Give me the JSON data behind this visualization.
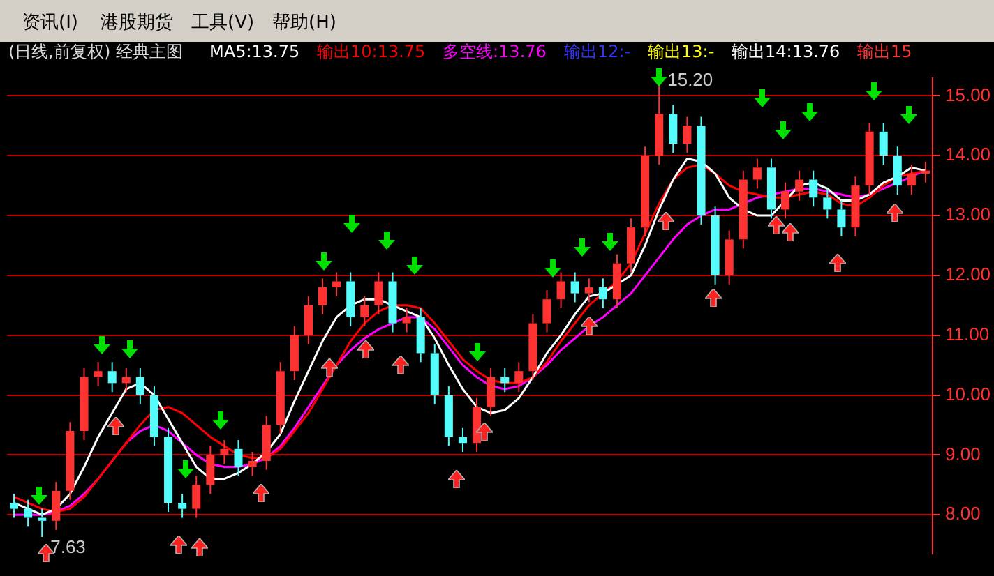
{
  "chart_data": {
    "type": "candlestick",
    "title": "(日线,前复权) 经典主图",
    "categories": [
      null,
      null,
      null,
      null,
      null,
      null,
      null,
      null,
      null,
      null,
      null,
      null,
      null,
      null,
      null,
      null,
      null,
      null,
      null,
      null,
      null,
      null,
      null,
      null,
      null,
      null,
      null,
      null,
      null,
      null,
      null,
      null,
      null,
      null,
      null,
      null,
      null,
      null,
      null,
      null,
      null,
      null,
      null,
      null,
      null,
      null,
      null,
      null,
      null,
      null,
      null,
      null,
      null,
      null,
      null,
      null,
      null,
      null,
      null,
      null,
      null,
      null,
      null,
      null,
      null,
      null
    ],
    "ohlc": [
      [
        8.2,
        8.35,
        7.95,
        8.1
      ],
      [
        8.1,
        8.25,
        7.8,
        7.95
      ],
      [
        7.95,
        8.1,
        7.63,
        7.9
      ],
      [
        7.9,
        8.55,
        7.75,
        8.4
      ],
      [
        8.4,
        9.55,
        8.25,
        9.4
      ],
      [
        9.4,
        10.45,
        9.25,
        10.3
      ],
      [
        10.3,
        10.55,
        10.15,
        10.4
      ],
      [
        10.4,
        10.55,
        10.05,
        10.2
      ],
      [
        10.2,
        10.45,
        10.05,
        10.3
      ],
      [
        10.3,
        10.45,
        9.85,
        10.0
      ],
      [
        10.0,
        10.15,
        9.15,
        9.3
      ],
      [
        9.3,
        9.45,
        8.05,
        8.2
      ],
      [
        8.2,
        8.35,
        7.95,
        8.1
      ],
      [
        8.1,
        8.65,
        7.95,
        8.5
      ],
      [
        8.5,
        9.15,
        8.35,
        9.0
      ],
      [
        9.0,
        9.25,
        8.85,
        9.1
      ],
      [
        9.1,
        9.25,
        8.65,
        8.8
      ],
      [
        8.8,
        9.05,
        8.65,
        8.9
      ],
      [
        8.9,
        9.65,
        8.75,
        9.5
      ],
      [
        9.5,
        10.55,
        9.35,
        10.4
      ],
      [
        10.4,
        11.15,
        10.25,
        11.0
      ],
      [
        11.0,
        11.65,
        10.85,
        11.5
      ],
      [
        11.5,
        11.95,
        11.35,
        11.8
      ],
      [
        11.8,
        12.05,
        11.65,
        11.9
      ],
      [
        11.9,
        12.05,
        11.15,
        11.3
      ],
      [
        11.3,
        11.65,
        11.15,
        11.5
      ],
      [
        11.5,
        12.05,
        11.35,
        11.9
      ],
      [
        11.9,
        12.05,
        11.05,
        11.2
      ],
      [
        11.2,
        11.45,
        11.05,
        11.3
      ],
      [
        11.3,
        11.45,
        10.55,
        10.7
      ],
      [
        10.7,
        10.85,
        9.85,
        10.0
      ],
      [
        10.0,
        10.15,
        9.15,
        9.3
      ],
      [
        9.3,
        9.45,
        9.05,
        9.2
      ],
      [
        9.2,
        9.95,
        9.05,
        9.8
      ],
      [
        9.8,
        10.45,
        9.65,
        10.3
      ],
      [
        10.3,
        10.45,
        10.05,
        10.2
      ],
      [
        10.2,
        10.55,
        10.05,
        10.4
      ],
      [
        10.4,
        11.35,
        10.25,
        11.2
      ],
      [
        11.2,
        11.75,
        11.05,
        11.6
      ],
      [
        11.6,
        12.05,
        11.45,
        11.9
      ],
      [
        11.9,
        12.05,
        11.55,
        11.7
      ],
      [
        11.7,
        11.95,
        11.55,
        11.8
      ],
      [
        11.8,
        11.95,
        11.45,
        11.6
      ],
      [
        11.6,
        12.35,
        11.45,
        12.2
      ],
      [
        12.2,
        12.95,
        12.05,
        12.8
      ],
      [
        12.8,
        14.15,
        12.65,
        14.0
      ],
      [
        14.0,
        15.2,
        13.85,
        14.7
      ],
      [
        14.7,
        14.85,
        14.05,
        14.2
      ],
      [
        14.2,
        14.65,
        14.05,
        14.5
      ],
      [
        14.5,
        14.65,
        12.85,
        13.0
      ],
      [
        13.0,
        13.15,
        11.85,
        12.0
      ],
      [
        12.0,
        12.75,
        11.85,
        12.6
      ],
      [
        12.6,
        13.75,
        12.45,
        13.6
      ],
      [
        13.6,
        13.95,
        13.45,
        13.8
      ],
      [
        13.8,
        13.95,
        12.95,
        13.1
      ],
      [
        13.1,
        13.55,
        12.95,
        13.4
      ],
      [
        13.4,
        13.75,
        13.25,
        13.6
      ],
      [
        13.6,
        13.75,
        13.15,
        13.3
      ],
      [
        13.3,
        13.45,
        12.95,
        13.1
      ],
      [
        13.1,
        13.25,
        12.65,
        12.8
      ],
      [
        12.8,
        13.65,
        12.65,
        13.5
      ],
      [
        13.5,
        14.55,
        13.35,
        14.4
      ],
      [
        14.4,
        14.55,
        13.85,
        14.0
      ],
      [
        14.0,
        14.15,
        13.35,
        13.5
      ],
      [
        13.5,
        13.85,
        13.35,
        13.7
      ],
      [
        13.7,
        13.9,
        13.55,
        13.75
      ]
    ],
    "colors": [
      "#54fcfc",
      "#54fcfc",
      "#54fcfc",
      "#ff3232",
      "#ff3232",
      "#ff3232",
      "#ff3232",
      "#54fcfc",
      "#ff3232",
      "#54fcfc",
      "#54fcfc",
      "#54fcfc",
      "#54fcfc",
      "#ff3232",
      "#ff3232",
      "#ff3232",
      "#54fcfc",
      "#ff3232",
      "#ff3232",
      "#ff3232",
      "#ff3232",
      "#ff3232",
      "#ff3232",
      "#ff3232",
      "#54fcfc",
      "#ff3232",
      "#ff3232",
      "#54fcfc",
      "#ff3232",
      "#54fcfc",
      "#54fcfc",
      "#54fcfc",
      "#54fcfc",
      "#ff3232",
      "#ff3232",
      "#54fcfc",
      "#ff3232",
      "#ff3232",
      "#ff3232",
      "#ff3232",
      "#54fcfc",
      "#ff3232",
      "#54fcfc",
      "#ff3232",
      "#ff3232",
      "#ff3232",
      "#ff3232",
      "#54fcfc",
      "#ff3232",
      "#54fcfc",
      "#54fcfc",
      "#ff3232",
      "#ff3232",
      "#ff3232",
      "#54fcfc",
      "#ff3232",
      "#ff3232",
      "#54fcfc",
      "#54fcfc",
      "#54fcfc",
      "#ff3232",
      "#ff3232",
      "#54fcfc",
      "#54fcfc",
      "#ff3232",
      "#ff3232"
    ],
    "series": [
      {
        "name": "MA5:13.75",
        "type": "line",
        "color": "#ffffff",
        "values": [
          8.2,
          8.1,
          8.0,
          8.1,
          8.35,
          8.8,
          9.3,
          9.7,
          10.1,
          10.2,
          10.0,
          9.6,
          9.2,
          8.8,
          8.6,
          8.6,
          8.7,
          8.85,
          9.05,
          9.35,
          9.9,
          10.4,
          10.9,
          11.3,
          11.5,
          11.6,
          11.6,
          11.5,
          11.4,
          11.3,
          10.95,
          10.5,
          10.1,
          9.8,
          9.7,
          9.75,
          9.95,
          10.3,
          10.7,
          11.0,
          11.35,
          11.65,
          11.7,
          11.85,
          12.0,
          12.5,
          13.1,
          13.6,
          13.95,
          13.9,
          13.7,
          13.3,
          13.1,
          13.0,
          13.0,
          13.25,
          13.5,
          13.55,
          13.45,
          13.25,
          13.25,
          13.35,
          13.55,
          13.65,
          13.8,
          13.75
        ]
      },
      {
        "name": "输出10:13.75",
        "type": "line",
        "color": "#ff0000",
        "values": [
          8.3,
          8.2,
          8.1,
          8.05,
          8.1,
          8.3,
          8.6,
          8.9,
          9.2,
          9.5,
          9.75,
          9.8,
          9.7,
          9.5,
          9.3,
          9.15,
          9.0,
          8.95,
          8.95,
          9.1,
          9.4,
          9.7,
          10.1,
          10.5,
          10.9,
          11.2,
          11.4,
          11.5,
          11.5,
          11.45,
          11.2,
          10.9,
          10.6,
          10.4,
          10.25,
          10.2,
          10.2,
          10.3,
          10.55,
          10.9,
          11.2,
          11.5,
          11.7,
          11.9,
          12.2,
          12.7,
          13.2,
          13.6,
          13.8,
          13.85,
          13.7,
          13.5,
          13.4,
          13.35,
          13.3,
          13.3,
          13.35,
          13.4,
          13.35,
          13.2,
          13.15,
          13.3,
          13.5,
          13.65,
          13.7,
          13.75
        ]
      },
      {
        "name": "多空线:13.76",
        "type": "line",
        "color": "#ff00ff",
        "values": [
          8.0,
          8.0,
          8.0,
          8.05,
          8.15,
          8.35,
          8.6,
          8.9,
          9.2,
          9.4,
          9.5,
          9.4,
          9.2,
          9.0,
          8.85,
          8.8,
          8.8,
          8.85,
          8.95,
          9.15,
          9.45,
          9.8,
          10.15,
          10.5,
          10.75,
          10.95,
          11.1,
          11.2,
          11.3,
          11.3,
          11.1,
          10.8,
          10.5,
          10.3,
          10.15,
          10.1,
          10.15,
          10.3,
          10.5,
          10.75,
          10.95,
          11.15,
          11.3,
          11.5,
          11.7,
          12.0,
          12.3,
          12.6,
          12.85,
          13.0,
          13.1,
          13.1,
          13.2,
          13.3,
          13.35,
          13.4,
          13.45,
          13.45,
          13.4,
          13.35,
          13.3,
          13.35,
          13.45,
          13.55,
          13.65,
          13.76
        ]
      }
    ],
    "ylim": [
      7.35,
      15.3
    ],
    "yticks": [
      {
        "value": 8,
        "label": "8.00"
      },
      {
        "value": 9,
        "label": "9.00"
      },
      {
        "value": 10,
        "label": "10.00"
      },
      {
        "value": 11,
        "label": "11.00"
      },
      {
        "value": 12,
        "label": "12.00"
      },
      {
        "value": 13,
        "label": "13.00"
      },
      {
        "value": 14,
        "label": "14.00"
      },
      {
        "value": 15,
        "label": "15.00"
      }
    ],
    "grid": "y",
    "marker": "none",
    "tick_labels": "y",
    "annotations": [
      "资讯(I)",
      "港股期货",
      "工具(V)",
      "帮助(H)",
      "输出12:-",
      "输出13:-",
      "输出14:13.76",
      "输出15",
      "15.20",
      "7.63"
    ]
  }
}
